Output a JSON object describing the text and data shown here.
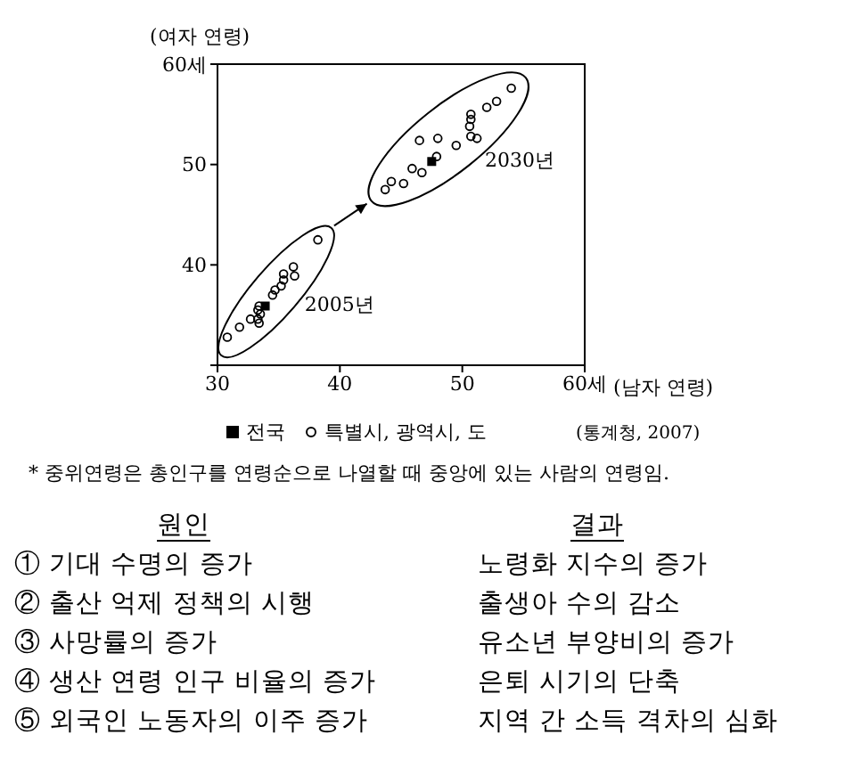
{
  "chart_data": {
    "type": "scatter",
    "xlabel": "(남자 연령)",
    "ylabel": "(여자 연령)",
    "xlim": [
      30,
      60
    ],
    "ylim": [
      30,
      60
    ],
    "xticks": [
      30,
      40,
      50,
      {
        "value": 60,
        "label": "60세"
      }
    ],
    "yticks": [
      {
        "value": 30,
        "label": null
      },
      40,
      50,
      {
        "value": 60,
        "label": "60세"
      }
    ],
    "grid": false,
    "legend": "bottom",
    "series": [
      {
        "name": "전국",
        "color": "#000000",
        "marker": "square",
        "x": [
          33.9,
          47.5
        ],
        "values": [
          35.9,
          50.3
        ]
      },
      {
        "name": "특별시, 광역시, 도",
        "color": "#000000",
        "marker": "circle",
        "x": [
          30.8,
          31.8,
          32.7,
          33.3,
          33.3,
          33.4,
          33.5,
          33.4,
          34.5,
          34.7,
          35.2,
          35.4,
          35.4,
          36.2,
          36.3,
          38.2,
          43.7,
          44.2,
          45.2,
          45.9,
          46.7,
          46.5,
          48.0,
          47.9,
          49.5,
          50.7,
          50.6,
          50.7,
          50.7,
          51.2,
          52.0,
          52.8,
          54.0
        ],
        "values": [
          32.8,
          33.8,
          34.6,
          34.6,
          35.5,
          35.9,
          35.1,
          34.2,
          37.0,
          37.5,
          37.9,
          38.5,
          39.1,
          39.8,
          38.9,
          42.5,
          47.5,
          48.3,
          48.1,
          49.6,
          49.2,
          52.4,
          52.6,
          50.8,
          51.9,
          52.8,
          53.8,
          54.5,
          55.0,
          52.6,
          55.7,
          56.3,
          57.6
        ]
      }
    ],
    "annotations": [
      "2005년",
      "2030년",
      "(통계청, 2007)",
      "* 중위연령은 총인구를 연령순으로 나열할 때 중앙에 있는 사람의 연령임.",
      "원인",
      "결과",
      "① 기대 수명의 증가",
      "노령화 지수의 증가",
      "② 출산 억제 정책의 시행",
      "출생아 수의 감소",
      "③ 사망률의 증가",
      "유소년 부양비의 증가",
      "④ 생산 연령 인구 비율의 증가",
      "은퇴 시기의 단축",
      "⑤ 외국인 노동자의 이주 증가",
      "지역 간 소득 격차의 심화"
    ]
  }
}
